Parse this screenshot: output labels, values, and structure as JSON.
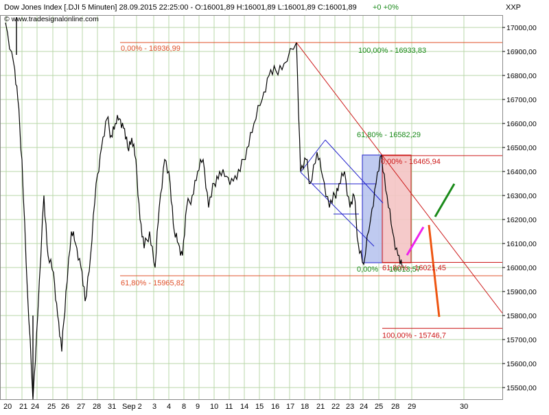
{
  "header": {
    "title": "Dow Jones Index [.DJI  5 Minuten] 28.09.2015 22:25:00 - O:16001,89 H:16001,89 L:16001,89 C:16001,89",
    "change": "+0 +0%",
    "source": "© www.tradesignalonline.com",
    "symbol": "XXP"
  },
  "chart_data": {
    "type": "line",
    "title": "Dow Jones Index [.DJI  5 Minuten] 28.09.2015 22:25:00",
    "ylim": [
      15450,
      17080
    ],
    "y_ticks": [
      15500,
      15600,
      15700,
      15800,
      15900,
      16000,
      16100,
      16200,
      16300,
      16400,
      16500,
      16600,
      16700,
      16800,
      16900,
      17000
    ],
    "y_tick_labels": [
      "15500,00",
      "15600,00",
      "15700,00",
      "15800,00",
      "15900,00",
      "16000,00",
      "16100,00",
      "16200,00",
      "16300,00",
      "16400,00",
      "16500,00",
      "16600,00",
      "16700,00",
      "16800,00",
      "16900,00",
      "17000,00"
    ],
    "x_labels": [
      "20",
      "21",
      "24",
      "25",
      "26",
      "27",
      "28",
      "31",
      "Sep 2",
      "3",
      "4",
      "8",
      "9",
      "10",
      "11",
      "14",
      "15",
      "16",
      "17",
      "18",
      "21",
      "22",
      "23",
      "24",
      "25",
      "28",
      "29",
      "30"
    ],
    "series": [
      {
        "values": [
          17020,
          16850,
          16700,
          16450,
          15900,
          15450,
          15800,
          16300,
          16050,
          15980,
          15800,
          15650,
          15900,
          16150,
          16100,
          16000,
          15860,
          16050,
          16350,
          16500,
          16620,
          16550,
          16600,
          16620,
          16580,
          16500,
          16540,
          16450,
          16200,
          16080,
          16150,
          16000,
          16250,
          16450,
          16350,
          16150,
          16100,
          16050,
          16250,
          16300,
          16400,
          16450,
          16250,
          16350,
          16400,
          16380,
          16360,
          16400,
          16500,
          16600,
          16700,
          16800,
          16820,
          16850,
          16936.99,
          16400,
          16450,
          16350,
          16480,
          16380,
          16250,
          16300,
          16350,
          16400,
          16250,
          16300,
          16100,
          16013.57,
          16200,
          16350,
          16465.94,
          16300,
          16150,
          16050,
          16001.89
        ]
      }
    ],
    "fib_upper": {
      "levels": [
        {
          "label": "0,00% - 16936,99",
          "value": 16936.99
        },
        {
          "label": "61,80% - 15965,82",
          "value": 15965.82
        }
      ]
    },
    "fib_middle": {
      "levels": [
        {
          "label": "100,00% - 16933,83",
          "value": 16933.83
        },
        {
          "label": "61,80% - 16582,29",
          "value": 16582.29
        },
        {
          "label": "0,00%",
          "value": 16013.57
        }
      ]
    },
    "fib_lower": {
      "levels": [
        {
          "label": "0,00% - 16465,94",
          "value": 16465.94
        },
        {
          "label": "61,80% - 16021,45",
          "value": 16021.45
        },
        {
          "label": "100,00% - 15746,7",
          "value": 15746.7
        }
      ]
    },
    "marker_value": "16013,57",
    "colors": {
      "price": "#000000",
      "fib_upper": "#e0502a",
      "fib_middle": "#1a8a1a",
      "fib_lower": "#cc1818",
      "channel": "#2020cc",
      "box_blue": "#b8c4ee",
      "box_red": "#f4c4c4",
      "arrow_green": "#1a8a1a",
      "arrow_magenta": "#ee22ee",
      "arrow_orange": "#ee5511",
      "grid": "#b8d7a8"
    }
  }
}
